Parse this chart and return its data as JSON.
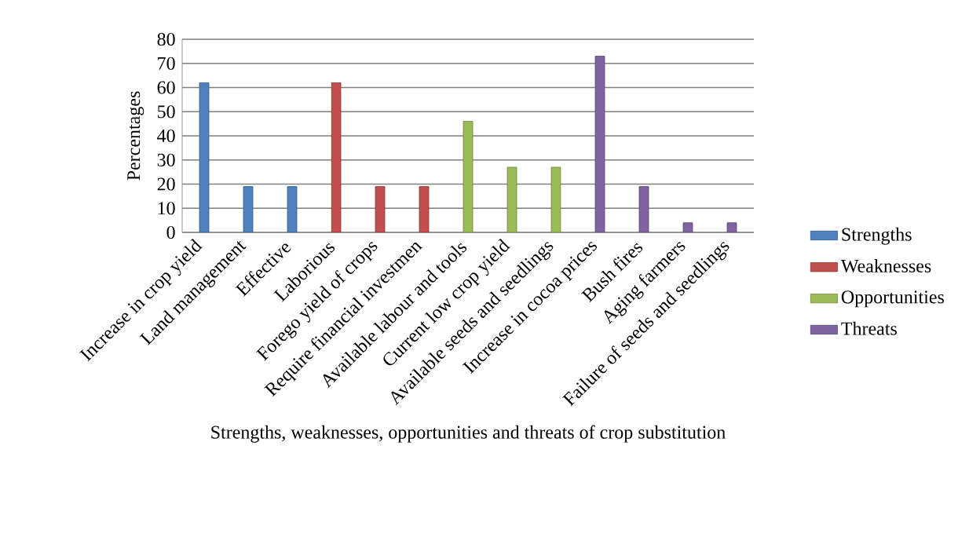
{
  "chart_data": {
    "type": "bar",
    "xlabel": "Strengths, weaknesses, opportunities and threats of crop substitution",
    "ylabel": "Percentages",
    "categories": [
      "Increase in crop yield",
      "Land management",
      "Effective",
      "Laborious",
      "Forego yield of crops",
      "Require financial investmen",
      "Available labour and tools",
      "Current low crop yield",
      "Available seeds and seedlings",
      "Increase in cocoa prices",
      "Bush fires",
      "Aging farmers",
      "Failure of seeds and seedlings"
    ],
    "series": [
      {
        "name": "Strengths",
        "color": "#4f81bd",
        "values": [
          62,
          19,
          19,
          null,
          null,
          null,
          null,
          null,
          null,
          null,
          null,
          null,
          null
        ]
      },
      {
        "name": "Weaknesses",
        "color": "#c0504d",
        "values": [
          null,
          null,
          null,
          62,
          19,
          19,
          null,
          null,
          null,
          null,
          null,
          null,
          null
        ]
      },
      {
        "name": "Opportunities",
        "color": "#9bbb59",
        "values": [
          null,
          null,
          null,
          null,
          null,
          null,
          46,
          27,
          27,
          null,
          null,
          null,
          null
        ]
      },
      {
        "name": "Threats",
        "color": "#8064a2",
        "values": [
          null,
          null,
          null,
          null,
          null,
          null,
          null,
          null,
          null,
          73,
          19,
          4,
          4
        ]
      }
    ],
    "ylim": [
      0,
      80
    ],
    "yticks": [
      0,
      10,
      20,
      30,
      40,
      50,
      60,
      70,
      80
    ],
    "grid": "y",
    "legend": "right"
  }
}
